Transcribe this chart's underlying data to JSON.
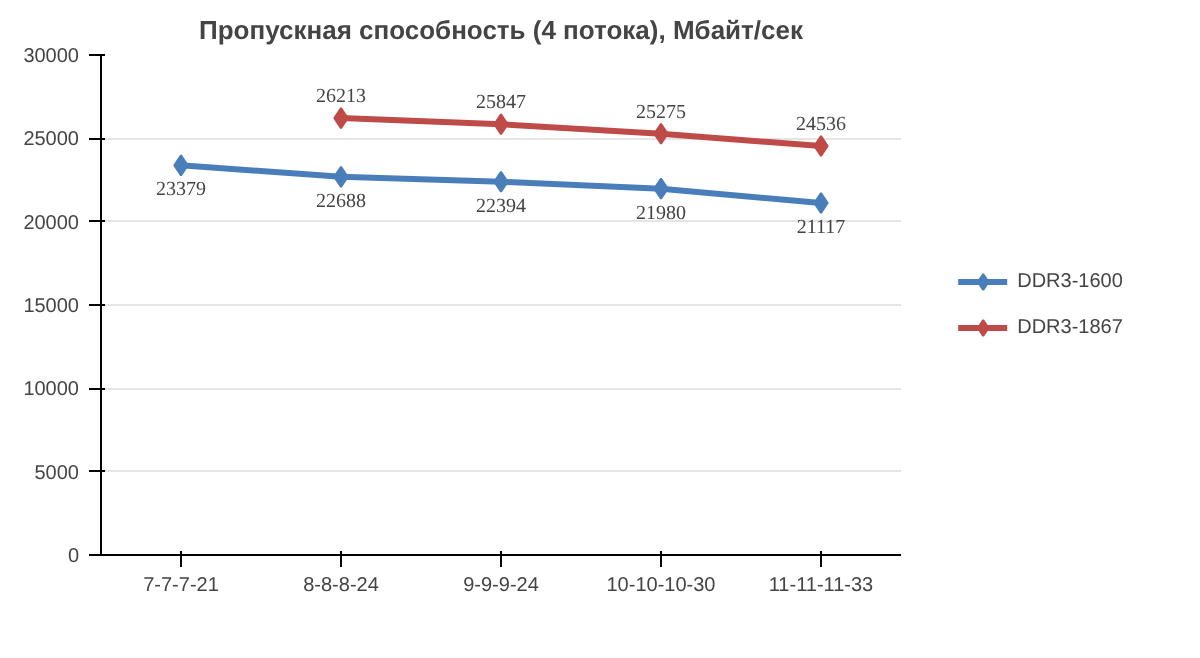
{
  "chart_data": {
    "type": "line",
    "title": "Пропускная способность (4 потока), Мбайт/сек",
    "categories": [
      "7-7-7-21",
      "8-8-8-24",
      "9-9-9-24",
      "10-10-10-30",
      "11-11-11-33"
    ],
    "series": [
      {
        "name": "DDR3-1600",
        "color": "#4a7ebb",
        "values": [
          23379,
          22688,
          22394,
          21980,
          21117
        ]
      },
      {
        "name": "DDR3-1867",
        "color": "#be4b48",
        "values": [
          null,
          26213,
          25847,
          25275,
          24536
        ]
      }
    ],
    "ylim": [
      0,
      30000
    ],
    "yticks": [
      0,
      5000,
      10000,
      15000,
      20000,
      25000,
      30000
    ],
    "grid": "y",
    "legend": "right",
    "marker": "diamond",
    "line_style": "solid",
    "data_labels": true
  }
}
